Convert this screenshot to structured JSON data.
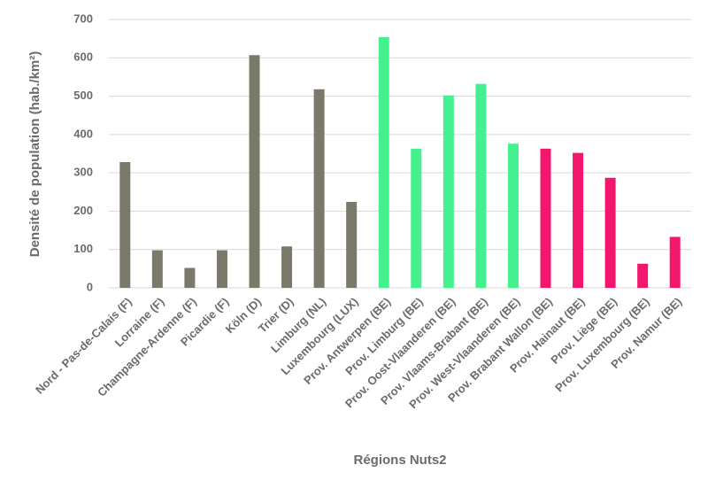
{
  "chart_data": {
    "type": "bar",
    "x_label": "Régions Nuts2",
    "y_label": "Densité de population (hab./km²)",
    "categories": [
      "Nord - Pas-de-Calais (F)",
      "Lorraine (F)",
      "Champagne-Ardenne (F)",
      "Picardie (F)",
      "Köln (D)",
      "Trier (D)",
      "Limburg (NL)",
      "Luxembourg (LUX)",
      "Prov. Antwerpen (BE)",
      "Prov. Limburg (BE)",
      "Prov. Oost-Vlaanderen (BE)",
      "Prov. Vlaams-Brabant (BE)",
      "Prov. West-Vlaanderen (BE)",
      "Prov. Brabant Wallon (BE)",
      "Prov. Hainaut (BE)",
      "Prov. Liège (BE)",
      "Prov. Luxembourg (BE)",
      "Prov. Namur (BE)"
    ],
    "values": [
      328,
      98,
      52,
      98,
      607,
      108,
      518,
      224,
      654,
      363,
      502,
      532,
      376,
      363,
      352,
      287,
      63,
      133
    ],
    "colors": [
      "#7a796b",
      "#7a796b",
      "#7a796b",
      "#7a796b",
      "#7a796b",
      "#7a796b",
      "#7a796b",
      "#7a796b",
      "#45f08e",
      "#45f08e",
      "#45f08e",
      "#45f08e",
      "#45f08e",
      "#f2176d",
      "#f2176d",
      "#f2176d",
      "#f2176d",
      "#f2176d"
    ],
    "ylim": [
      0,
      700
    ],
    "yticks": [
      0,
      100,
      200,
      300,
      400,
      500,
      600,
      700
    ],
    "grid": true
  }
}
